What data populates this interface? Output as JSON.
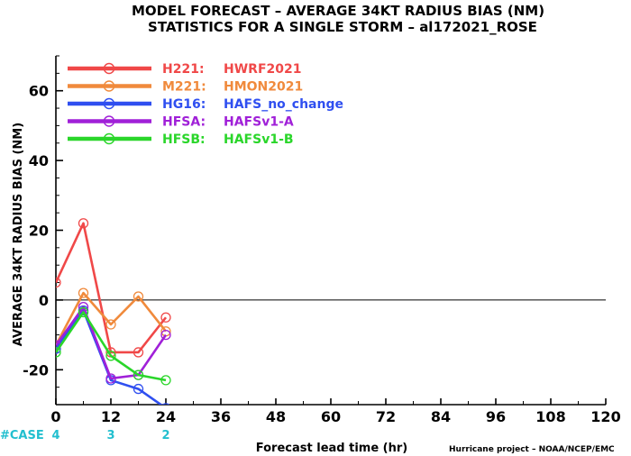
{
  "title_line1": "MODEL FORECAST – AVERAGE 34KT RADIUS BIAS (NM)",
  "title_line2": "STATISTICS FOR A SINGLE STORM – al172021_ROSE",
  "credit": "Hurricane project – NOAA/NCEP/EMC",
  "case_label": "#CASE",
  "case_counts": [
    {
      "x": 0,
      "count": "4"
    },
    {
      "x": 12,
      "count": "3"
    },
    {
      "x": 24,
      "count": "2"
    }
  ],
  "colors": {
    "case": "#22bfcf",
    "zero_line": "#000000"
  },
  "chart_data": {
    "type": "line",
    "xlabel": "Forecast lead time (hr)",
    "ylabel": "AVERAGE 34KT RADIUS BIAS (NM)",
    "xlim": [
      0,
      120
    ],
    "ylim": [
      -30,
      70
    ],
    "xticks": [
      0,
      12,
      24,
      36,
      48,
      60,
      72,
      84,
      96,
      108,
      120
    ],
    "yticks": [
      -20,
      0,
      20,
      40,
      60
    ],
    "zero_line": true,
    "grid": false,
    "legend_position": "top-left",
    "x": [
      0,
      6,
      12,
      18,
      24
    ],
    "series": [
      {
        "name": "H221:",
        "label": "HWRF2021",
        "color": "#f04848",
        "values": [
          5,
          22,
          -15,
          -15,
          -5
        ]
      },
      {
        "name": "M221:",
        "label": "HMON2021",
        "color": "#f08a3c",
        "values": [
          -13,
          2,
          -7,
          1,
          -9
        ]
      },
      {
        "name": "HG16:",
        "label": "HAFS_no_change",
        "color": "#2f4ff0",
        "values": [
          -14,
          -3,
          -23,
          -25.5,
          -31
        ]
      },
      {
        "name": "HFSA:",
        "label": "HAFSv1-A",
        "color": "#a020d8",
        "values": [
          -13,
          -2,
          -22.5,
          -21.5,
          -10
        ]
      },
      {
        "name": "HFSB:",
        "label": "HAFSv1-B",
        "color": "#2ad62a",
        "values": [
          -15,
          -3.5,
          -16,
          -21.5,
          -23
        ]
      }
    ]
  }
}
